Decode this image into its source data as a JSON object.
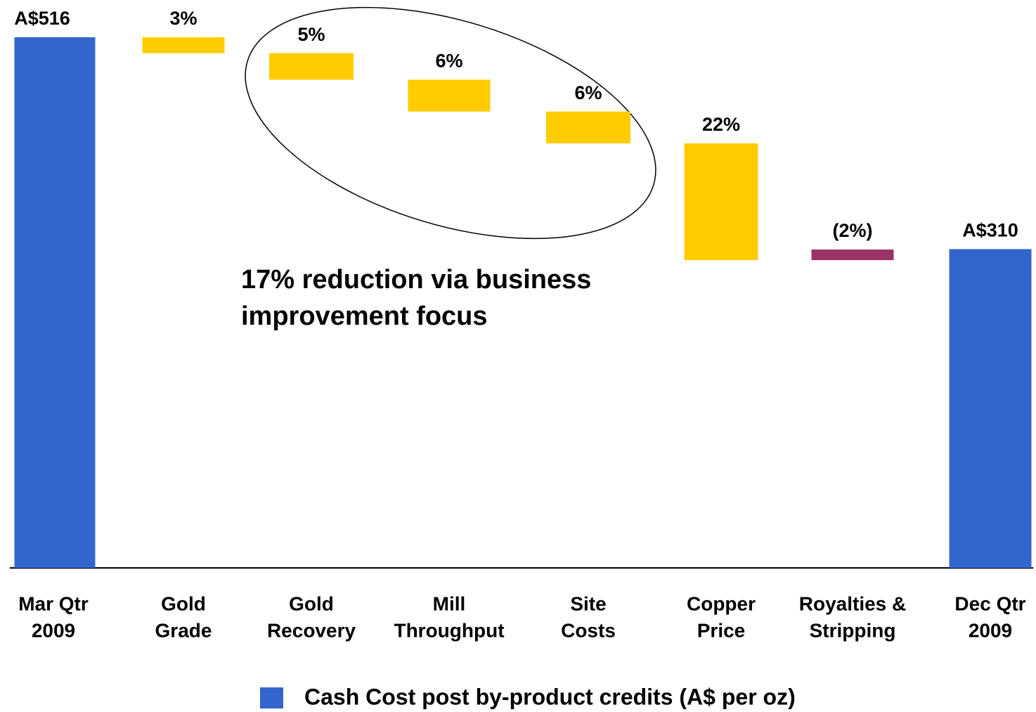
{
  "chart_data": {
    "type": "waterfall",
    "categories": [
      [
        "Mar Qtr",
        "2009"
      ],
      [
        "Gold",
        "Grade"
      ],
      [
        "Gold",
        "Recovery"
      ],
      [
        "Mill",
        "Throughput"
      ],
      [
        "Site",
        "Costs"
      ],
      [
        "Copper",
        "Price"
      ],
      [
        "Royalties &",
        "Stripping"
      ],
      [
        "Dec Qtr",
        "2009"
      ]
    ],
    "values": [
      516,
      3,
      5,
      6,
      6,
      22,
      -2,
      310
    ],
    "value_labels": [
      "A$516",
      "3%",
      "5%",
      "6%",
      "6%",
      "22%",
      "(2%)",
      "A$310"
    ],
    "ylim": [
      0,
      516
    ],
    "colors": {
      "total": "#3366cc",
      "decrease": "#ffcc00",
      "increase": "#993366"
    },
    "annotation": [
      "17% reduction via business",
      "improvement focus"
    ],
    "legend": "Cash Cost post by-product credits (A$ per oz)"
  }
}
